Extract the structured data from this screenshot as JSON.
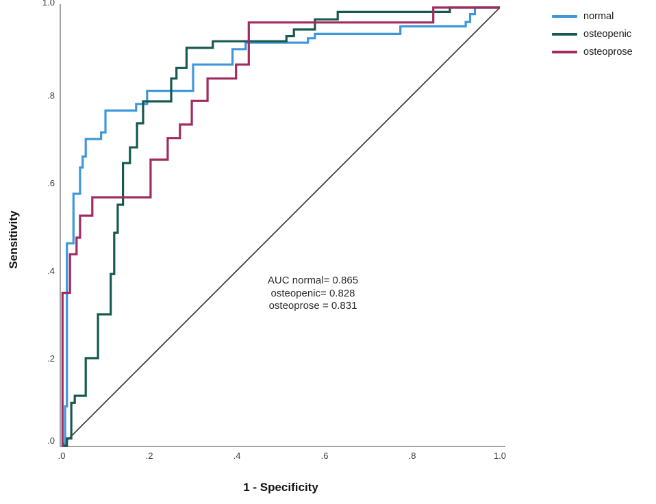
{
  "axes": {
    "x": {
      "title": "1 - Specificity",
      "ticks": [
        ".0",
        ".2",
        ".4",
        ".6",
        ".8",
        "1.0"
      ]
    },
    "y": {
      "title": "Sensitivity",
      "ticks": [
        ".0",
        ".2",
        ".4",
        ".6",
        ".8",
        "1.0"
      ]
    }
  },
  "legend": {
    "items": [
      {
        "label": "normal",
        "color": "#3f97da"
      },
      {
        "label": "osteopenic",
        "color": "#15594f"
      },
      {
        "label": "osteoprose",
        "color": "#a22a5f"
      }
    ]
  },
  "annotation": {
    "lines": [
      "AUC normal= 0.865",
      "osteopenic= 0.828",
      "osteoprose  = 0.831"
    ]
  },
  "colors": {
    "axis_line": "#a3a3a3",
    "reference_line": "#3f3f3f",
    "background": "#ffffff"
  },
  "chart_data": {
    "type": "line",
    "subtype": "roc-step-curves",
    "title": "",
    "xlabel": "1 - Specificity",
    "ylabel": "Sensitivity",
    "xlim": [
      0,
      1
    ],
    "ylim": [
      0,
      1
    ],
    "xticks": [
      0,
      0.2,
      0.4,
      0.6,
      0.8,
      1.0
    ],
    "yticks": [
      0,
      0.2,
      0.4,
      0.6,
      0.8,
      1.0
    ],
    "grid": false,
    "legend_position": "top-right",
    "reference_line": {
      "from": [
        0,
        0
      ],
      "to": [
        1,
        1
      ],
      "color": "#3f3f3f"
    },
    "series": [
      {
        "name": "normal",
        "auc": 0.865,
        "color": "#3f97da",
        "points": [
          [
            0,
            0
          ],
          [
            0.008,
            0
          ],
          [
            0.008,
            0.09
          ],
          [
            0.012,
            0.09
          ],
          [
            0.012,
            0.462
          ],
          [
            0.027,
            0.462
          ],
          [
            0.027,
            0.575
          ],
          [
            0.042,
            0.575
          ],
          [
            0.042,
            0.635
          ],
          [
            0.048,
            0.635
          ],
          [
            0.048,
            0.66
          ],
          [
            0.055,
            0.66
          ],
          [
            0.055,
            0.7
          ],
          [
            0.09,
            0.7
          ],
          [
            0.09,
            0.715
          ],
          [
            0.1,
            0.715
          ],
          [
            0.1,
            0.765
          ],
          [
            0.17,
            0.765
          ],
          [
            0.17,
            0.78
          ],
          [
            0.195,
            0.78
          ],
          [
            0.195,
            0.81
          ],
          [
            0.3,
            0.81
          ],
          [
            0.3,
            0.87
          ],
          [
            0.39,
            0.87
          ],
          [
            0.39,
            0.905
          ],
          [
            0.42,
            0.905
          ],
          [
            0.42,
            0.92
          ],
          [
            0.562,
            0.92
          ],
          [
            0.562,
            0.93
          ],
          [
            0.578,
            0.93
          ],
          [
            0.578,
            0.94
          ],
          [
            0.773,
            0.94
          ],
          [
            0.773,
            0.957
          ],
          [
            0.922,
            0.957
          ],
          [
            0.922,
            0.967
          ],
          [
            0.932,
            0.967
          ],
          [
            0.932,
            0.985
          ],
          [
            0.943,
            0.985
          ],
          [
            0.943,
            1
          ],
          [
            1,
            1
          ]
        ]
      },
      {
        "name": "osteopenic",
        "auc": 0.828,
        "color": "#15594f",
        "points": [
          [
            0,
            0
          ],
          [
            0.012,
            0
          ],
          [
            0.012,
            0.017
          ],
          [
            0.022,
            0.017
          ],
          [
            0.022,
            0.098
          ],
          [
            0.03,
            0.098
          ],
          [
            0.03,
            0.114
          ],
          [
            0.055,
            0.114
          ],
          [
            0.055,
            0.2
          ],
          [
            0.083,
            0.2
          ],
          [
            0.083,
            0.3
          ],
          [
            0.112,
            0.3
          ],
          [
            0.112,
            0.392
          ],
          [
            0.12,
            0.392
          ],
          [
            0.12,
            0.486
          ],
          [
            0.128,
            0.486
          ],
          [
            0.128,
            0.55
          ],
          [
            0.14,
            0.55
          ],
          [
            0.14,
            0.645
          ],
          [
            0.156,
            0.645
          ],
          [
            0.156,
            0.681
          ],
          [
            0.172,
            0.681
          ],
          [
            0.172,
            0.736
          ],
          [
            0.186,
            0.736
          ],
          [
            0.186,
            0.786
          ],
          [
            0.25,
            0.786
          ],
          [
            0.25,
            0.838
          ],
          [
            0.262,
            0.838
          ],
          [
            0.262,
            0.862
          ],
          [
            0.285,
            0.862
          ],
          [
            0.285,
            0.908
          ],
          [
            0.345,
            0.908
          ],
          [
            0.345,
            0.923
          ],
          [
            0.513,
            0.923
          ],
          [
            0.513,
            0.935
          ],
          [
            0.53,
            0.935
          ],
          [
            0.53,
            0.95
          ],
          [
            0.578,
            0.95
          ],
          [
            0.578,
            0.973
          ],
          [
            0.63,
            0.973
          ],
          [
            0.63,
            0.99
          ],
          [
            0.886,
            0.99
          ],
          [
            0.886,
            1
          ],
          [
            1,
            1
          ]
        ]
      },
      {
        "name": "osteoprose",
        "auc": 0.831,
        "color": "#a22a5f",
        "points": [
          [
            0,
            0
          ],
          [
            0.002,
            0
          ],
          [
            0.002,
            0.349
          ],
          [
            0.019,
            0.349
          ],
          [
            0.019,
            0.437
          ],
          [
            0.034,
            0.437
          ],
          [
            0.034,
            0.475
          ],
          [
            0.042,
            0.475
          ],
          [
            0.042,
            0.525
          ],
          [
            0.07,
            0.525
          ],
          [
            0.07,
            0.567
          ],
          [
            0.203,
            0.567
          ],
          [
            0.203,
            0.653
          ],
          [
            0.242,
            0.653
          ],
          [
            0.242,
            0.702
          ],
          [
            0.27,
            0.702
          ],
          [
            0.27,
            0.733
          ],
          [
            0.297,
            0.733
          ],
          [
            0.297,
            0.787
          ],
          [
            0.333,
            0.787
          ],
          [
            0.333,
            0.838
          ],
          [
            0.398,
            0.838
          ],
          [
            0.398,
            0.87
          ],
          [
            0.427,
            0.87
          ],
          [
            0.427,
            0.966
          ],
          [
            0.848,
            0.966
          ],
          [
            0.848,
            1
          ],
          [
            1,
            1
          ]
        ]
      }
    ]
  }
}
